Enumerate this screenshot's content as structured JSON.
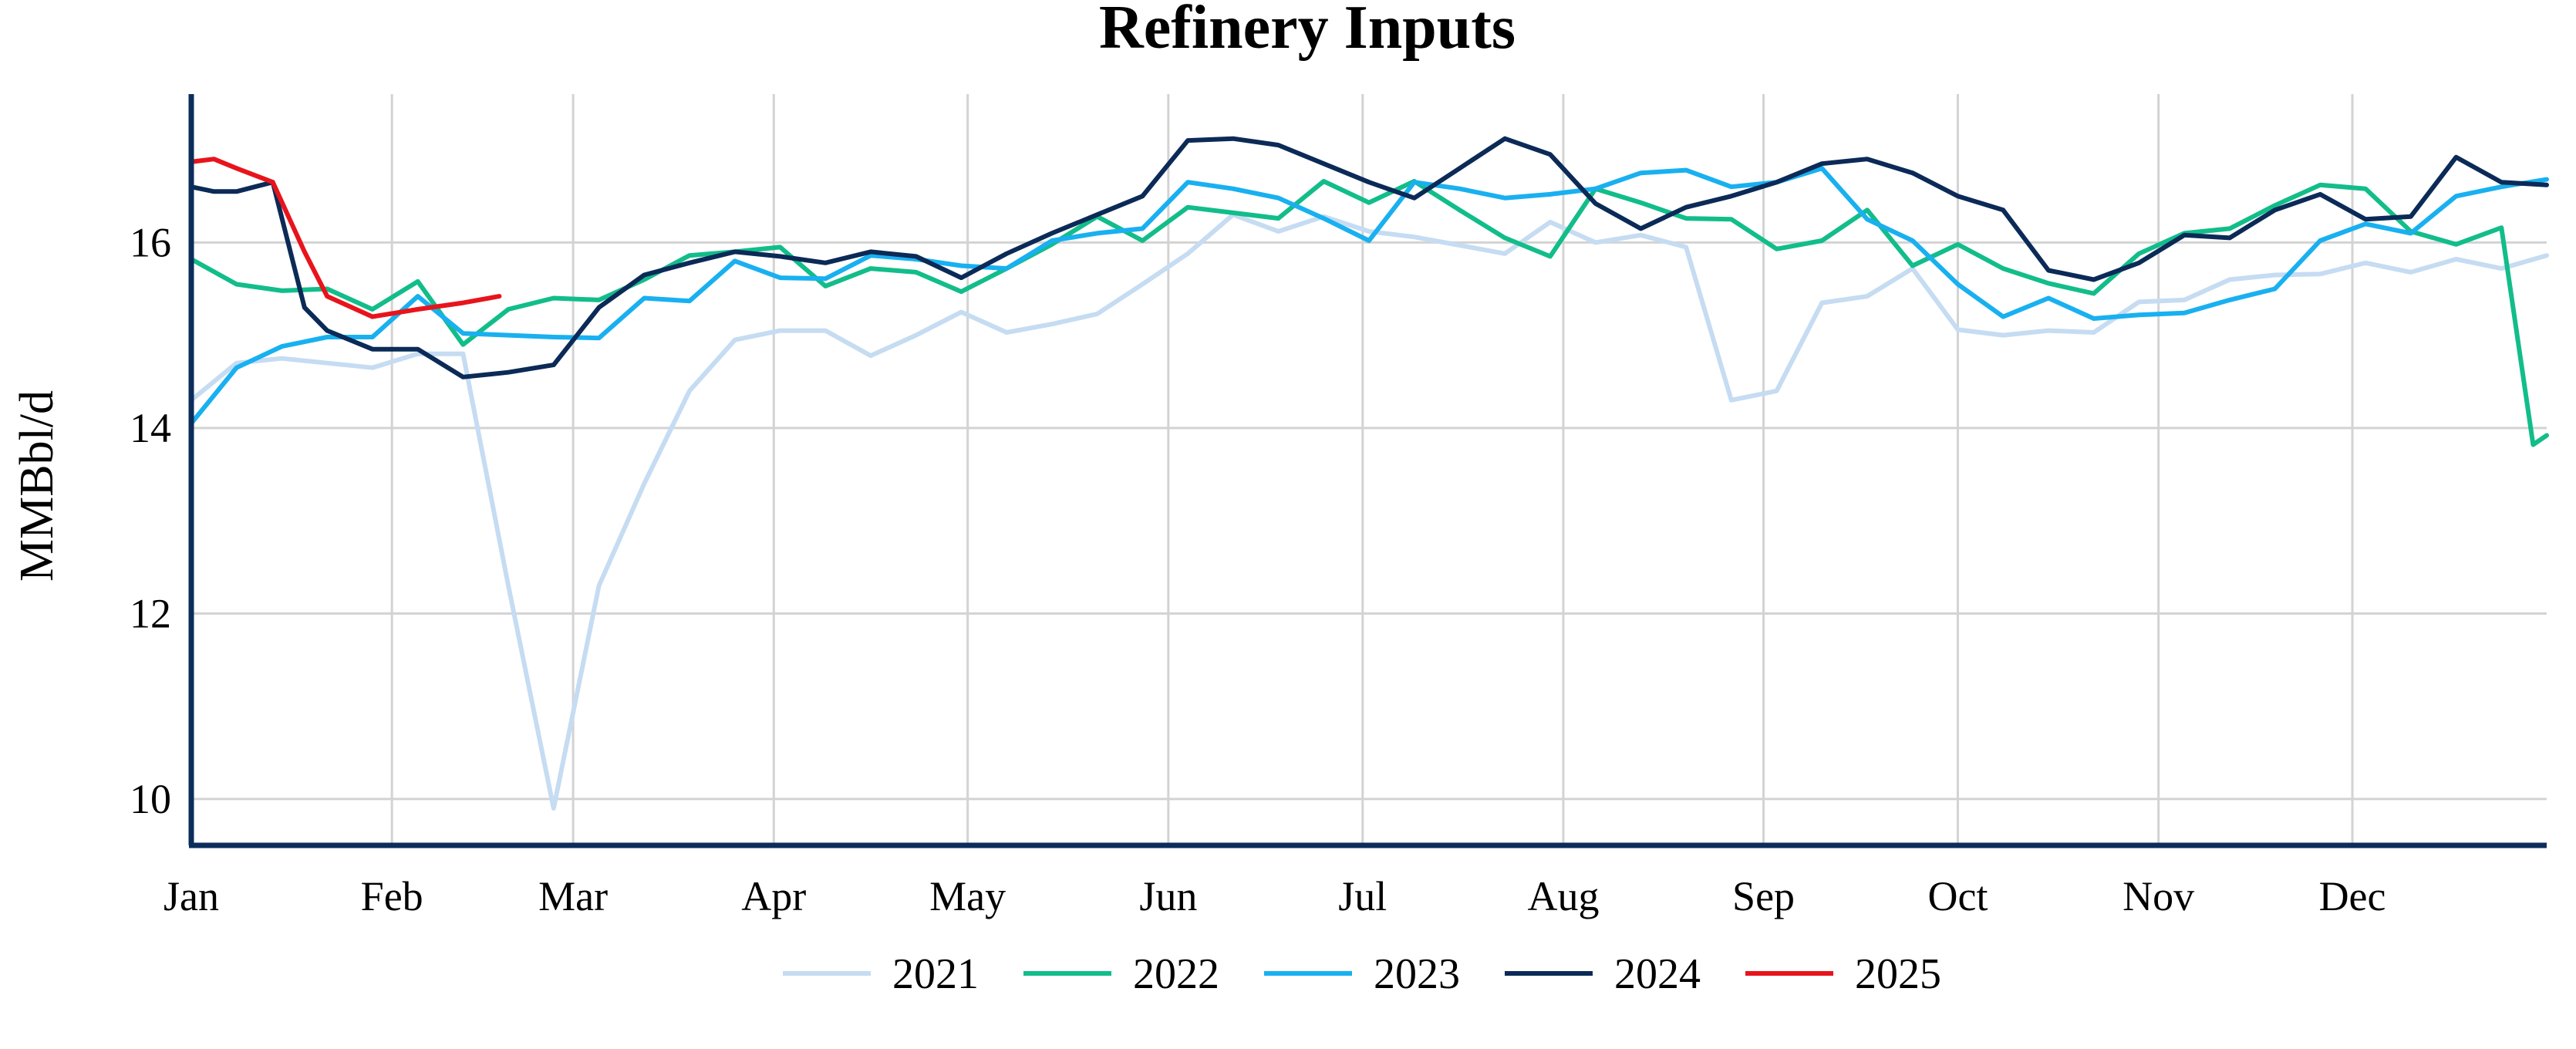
{
  "chart_data": {
    "type": "line",
    "title": "Refinery Inputs",
    "xlabel": "",
    "ylabel": "MMBbl/d",
    "x_unit": "week",
    "xlim": [
      1,
      53
    ],
    "ylim": [
      9.5,
      17.6
    ],
    "yticks": [
      10,
      12,
      14,
      16
    ],
    "xticks": [
      {
        "label": "Jan",
        "week": 1
      },
      {
        "label": "Feb",
        "week": 5.43
      },
      {
        "label": "Mar",
        "week": 9.43
      },
      {
        "label": "Apr",
        "week": 13.86
      },
      {
        "label": "May",
        "week": 18.14
      },
      {
        "label": "Jun",
        "week": 22.57
      },
      {
        "label": "Jul",
        "week": 26.86
      },
      {
        "label": "Aug",
        "week": 31.29
      },
      {
        "label": "Sep",
        "week": 35.71
      },
      {
        "label": "Oct",
        "week": 40.0
      },
      {
        "label": "Nov",
        "week": 44.43
      },
      {
        "label": "Dec",
        "week": 48.71
      }
    ],
    "grid": true,
    "legend_position": "bottom",
    "series": [
      {
        "name": "2021",
        "color": "#c5dcf2",
        "x": [
          1,
          2,
          3,
          4,
          5,
          6,
          7,
          8,
          9,
          10,
          11,
          12,
          13,
          14,
          15,
          16,
          17,
          18,
          19,
          20,
          21,
          22,
          23,
          24,
          25,
          26,
          27,
          28,
          29,
          30,
          31,
          32,
          33,
          34,
          35,
          36,
          37,
          38,
          39,
          40,
          41,
          42,
          43,
          44,
          45,
          46,
          47,
          48,
          49,
          50,
          51,
          52,
          53
        ],
        "values": [
          14.3,
          14.7,
          14.75,
          14.7,
          14.65,
          14.8,
          14.8,
          12.3,
          9.9,
          12.3,
          13.4,
          14.4,
          14.95,
          15.05,
          15.05,
          14.78,
          15.0,
          15.25,
          15.03,
          15.12,
          15.23,
          15.55,
          15.88,
          16.3,
          16.12,
          16.28,
          16.12,
          16.06,
          15.97,
          15.88,
          16.22,
          16.0,
          16.08,
          15.95,
          14.3,
          14.4,
          15.35,
          15.42,
          15.72,
          15.06,
          15.0,
          15.05,
          15.03,
          15.36,
          15.38,
          15.6,
          15.65,
          15.66,
          15.78,
          15.68,
          15.82,
          15.72,
          15.86
        ]
      },
      {
        "name": "2022",
        "color": "#12bd8a",
        "x": [
          1,
          2,
          3,
          4,
          5,
          6,
          7,
          8,
          9,
          10,
          11,
          12,
          13,
          14,
          15,
          16,
          17,
          18,
          19,
          20,
          21,
          22,
          23,
          24,
          25,
          26,
          27,
          28,
          29,
          30,
          31,
          32,
          33,
          34,
          35,
          36,
          37,
          38,
          39,
          40,
          41,
          42,
          43,
          44,
          45,
          46,
          47,
          48,
          49,
          50,
          51,
          52,
          52.7,
          53
        ],
        "values": [
          15.82,
          15.55,
          15.48,
          15.5,
          15.28,
          15.58,
          14.9,
          15.28,
          15.4,
          15.38,
          15.6,
          15.86,
          15.9,
          15.95,
          15.53,
          15.72,
          15.68,
          15.47,
          15.72,
          15.98,
          16.28,
          16.02,
          16.38,
          16.32,
          16.26,
          16.66,
          16.43,
          16.66,
          16.35,
          16.05,
          15.85,
          16.58,
          16.43,
          16.26,
          16.25,
          15.93,
          16.02,
          16.35,
          15.75,
          15.98,
          15.72,
          15.56,
          15.45,
          15.88,
          16.1,
          16.15,
          16.4,
          16.62,
          16.58,
          16.12,
          15.98,
          16.16,
          13.82,
          13.92
        ]
      },
      {
        "name": "2023",
        "color": "#19b0f0",
        "x": [
          1,
          2,
          3,
          4,
          5,
          6,
          7,
          8,
          9,
          10,
          11,
          12,
          13,
          14,
          15,
          16,
          17,
          18,
          19,
          20,
          21,
          22,
          23,
          24,
          25,
          26,
          27,
          28,
          29,
          30,
          31,
          32,
          33,
          34,
          35,
          36,
          37,
          38,
          39,
          40,
          41,
          42,
          43,
          44,
          45,
          46,
          47,
          48,
          49,
          50,
          51,
          52,
          53
        ],
        "values": [
          14.05,
          14.65,
          14.88,
          14.98,
          14.98,
          15.42,
          15.02,
          15.0,
          14.98,
          14.97,
          15.4,
          15.37,
          15.8,
          15.62,
          15.61,
          15.86,
          15.82,
          15.75,
          15.72,
          16.02,
          16.1,
          16.15,
          16.65,
          16.58,
          16.48,
          16.26,
          16.02,
          16.65,
          16.58,
          16.48,
          16.52,
          16.58,
          16.75,
          16.78,
          16.6,
          16.65,
          16.8,
          16.25,
          16.02,
          15.55,
          15.2,
          15.4,
          15.18,
          15.22,
          15.24,
          15.38,
          15.5,
          16.02,
          16.2,
          16.1,
          16.5,
          16.6,
          16.68
        ]
      },
      {
        "name": "2024",
        "color": "#0b2a57",
        "x": [
          1,
          1.5,
          2,
          2.8,
          3.5,
          4,
          5,
          6,
          7,
          8,
          9,
          10,
          11,
          12,
          13,
          14,
          15,
          16,
          17,
          18,
          19,
          20,
          21,
          22,
          23,
          24,
          25,
          26,
          27,
          28,
          29,
          30,
          31,
          32,
          33,
          34,
          35,
          36,
          37,
          38,
          39,
          40,
          41,
          42,
          43,
          44,
          45,
          46,
          47,
          48,
          49,
          50,
          51,
          52,
          53
        ],
        "values": [
          16.6,
          16.55,
          16.55,
          16.65,
          15.3,
          15.05,
          14.85,
          14.85,
          14.55,
          14.6,
          14.68,
          15.3,
          15.65,
          15.78,
          15.9,
          15.85,
          15.78,
          15.9,
          15.85,
          15.62,
          15.88,
          16.1,
          16.3,
          16.5,
          17.1,
          17.12,
          17.05,
          16.85,
          16.65,
          16.48,
          16.8,
          17.12,
          16.95,
          16.42,
          16.15,
          16.38,
          16.5,
          16.65,
          16.85,
          16.9,
          16.75,
          16.5,
          16.35,
          15.7,
          15.6,
          15.78,
          16.08,
          16.05,
          16.35,
          16.52,
          16.25,
          16.28,
          16.92,
          16.65,
          16.62
        ]
      },
      {
        "name": "2025",
        "color": "#e8141c",
        "x": [
          1,
          1.5,
          2,
          2.8,
          3.5,
          4,
          5,
          6,
          7,
          7.8
        ],
        "values": [
          16.87,
          16.9,
          16.8,
          16.65,
          15.9,
          15.42,
          15.2,
          15.28,
          15.35,
          15.42
        ]
      }
    ]
  }
}
